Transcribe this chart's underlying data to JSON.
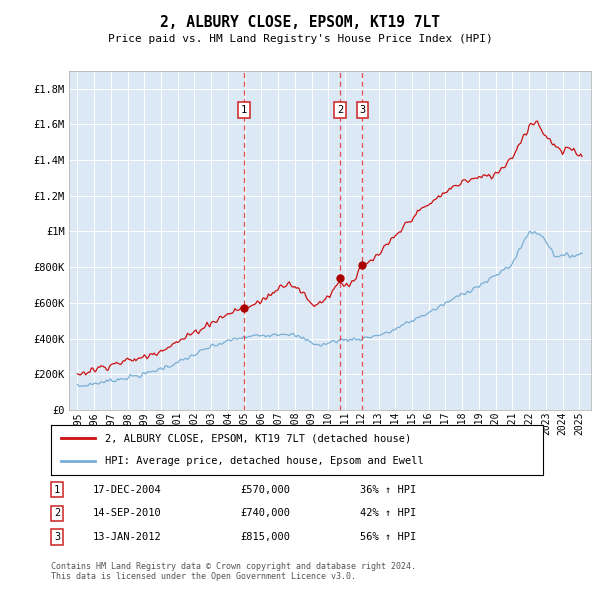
{
  "title": "2, ALBURY CLOSE, EPSOM, KT19 7LT",
  "subtitle": "Price paid vs. HM Land Registry's House Price Index (HPI)",
  "footnote": "Contains HM Land Registry data © Crown copyright and database right 2024.\nThis data is licensed under the Open Government Licence v3.0.",
  "legend_line1": "2, ALBURY CLOSE, EPSOM, KT19 7LT (detached house)",
  "legend_line2": "HPI: Average price, detached house, Epsom and Ewell",
  "transactions": [
    {
      "label": "1",
      "date": "17-DEC-2004",
      "price": 570000,
      "pct": "36%",
      "year": 2004.96
    },
    {
      "label": "2",
      "date": "14-SEP-2010",
      "price": 740000,
      "pct": "42%",
      "year": 2010.71
    },
    {
      "label": "3",
      "date": "13-JAN-2012",
      "price": 815000,
      "pct": "56%",
      "year": 2012.04
    }
  ],
  "hpi_color": "#7aaed4",
  "price_color": "#cc1111",
  "vline_color": "#dd3333",
  "plot_bg": "#dce9f5",
  "ylim": [
    0,
    1900000
  ],
  "xlim_start": 1994.5,
  "xlim_end": 2025.7,
  "yticks": [
    0,
    200000,
    400000,
    600000,
    800000,
    1000000,
    1200000,
    1400000,
    1600000,
    1800000
  ],
  "ytick_labels": [
    "£0",
    "£200K",
    "£400K",
    "£600K",
    "£800K",
    "£1M",
    "£1.2M",
    "£1.4M",
    "£1.6M",
    "£1.8M"
  ],
  "xticks": [
    1995,
    1996,
    1997,
    1998,
    1999,
    2000,
    2001,
    2002,
    2003,
    2004,
    2005,
    2006,
    2007,
    2008,
    2009,
    2010,
    2011,
    2012,
    2013,
    2014,
    2015,
    2016,
    2017,
    2018,
    2019,
    2020,
    2021,
    2022,
    2023,
    2024,
    2025
  ]
}
